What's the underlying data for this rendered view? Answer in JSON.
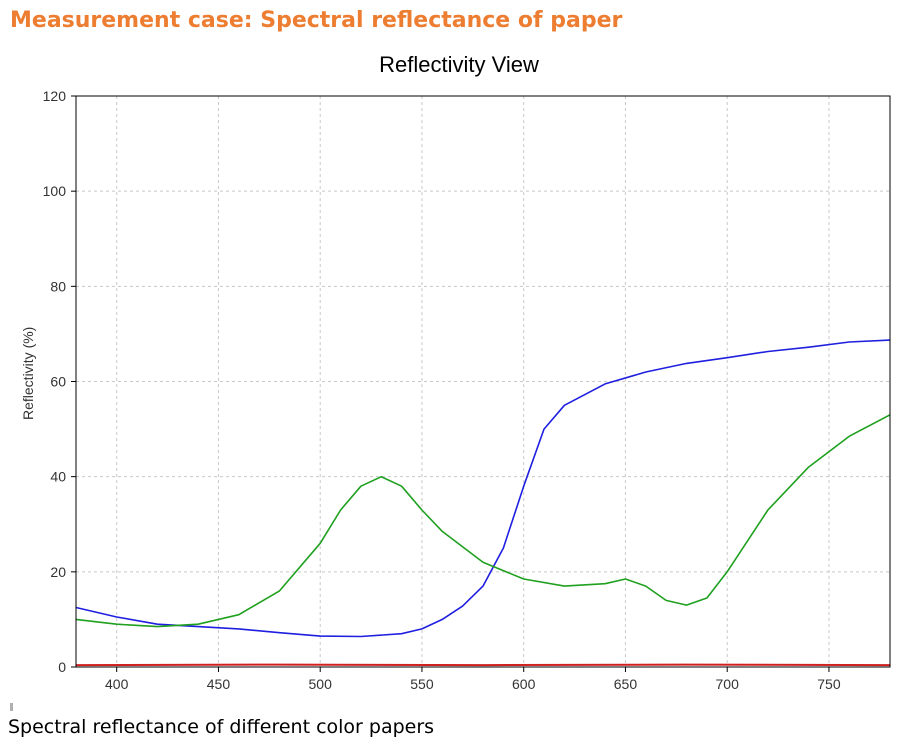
{
  "heading": "Measurement case: Spectral reflectance of paper",
  "caption": "Spectral reflectance of different color papers",
  "colors": {
    "heading": "#ed7d31",
    "blue": "#1f1fe0",
    "green": "#1fa01f",
    "red": "#d02020",
    "grid": "#c8c8c8"
  },
  "chart_data": {
    "type": "line",
    "title": "Reflectivity View",
    "xlabel": "",
    "ylabel": "Reflectivity (%)",
    "xlim": [
      380,
      780
    ],
    "ylim": [
      0,
      120
    ],
    "xticks": [
      400,
      450,
      500,
      550,
      600,
      650,
      700,
      750
    ],
    "yticks": [
      0,
      20,
      40,
      60,
      80,
      100,
      120
    ],
    "grid": true,
    "legend": "none",
    "series": [
      {
        "color": "#1f1fe0",
        "x": [
          380,
          400,
          420,
          440,
          460,
          480,
          500,
          520,
          540,
          550,
          560,
          570,
          580,
          590,
          600,
          610,
          620,
          640,
          660,
          680,
          700,
          720,
          740,
          760,
          780
        ],
        "y": [
          12.5,
          10.5,
          9.0,
          8.5,
          8.0,
          7.2,
          6.5,
          6.4,
          7.0,
          8.0,
          10.0,
          12.8,
          17.0,
          25.0,
          38.0,
          50.0,
          55.0,
          59.5,
          62.0,
          63.8,
          65.0,
          66.3,
          67.2,
          68.3,
          68.7
        ]
      },
      {
        "color": "#1fa01f",
        "x": [
          380,
          400,
          420,
          440,
          460,
          480,
          500,
          510,
          520,
          530,
          540,
          550,
          560,
          580,
          600,
          620,
          640,
          650,
          660,
          670,
          680,
          690,
          700,
          720,
          740,
          760,
          780
        ],
        "y": [
          10.0,
          9.0,
          8.5,
          9.0,
          11.0,
          16.0,
          26.0,
          33.0,
          38.0,
          40.0,
          38.0,
          33.0,
          28.5,
          22.0,
          18.5,
          17.0,
          17.5,
          18.5,
          17.0,
          14.0,
          13.0,
          14.5,
          20.0,
          33.0,
          42.0,
          48.5,
          53.0
        ]
      },
      {
        "color": "#d02020",
        "x": [
          380,
          480,
          580,
          680,
          780
        ],
        "y": [
          0.4,
          0.5,
          0.4,
          0.5,
          0.4
        ]
      }
    ]
  }
}
